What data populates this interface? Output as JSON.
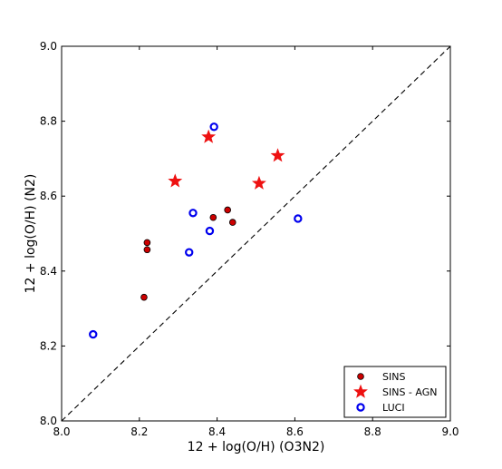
{
  "chart_data": {
    "type": "scatter",
    "xlabel": "12 + log(O/H) (O3N2)",
    "ylabel": "12 + log(O/H) (N2)",
    "xlim": [
      8.0,
      9.0
    ],
    "ylim": [
      8.0,
      9.0
    ],
    "xticks": [
      "8.0",
      "8.2",
      "8.4",
      "8.6",
      "8.8",
      "9.0"
    ],
    "yticks": [
      "8.0",
      "8.2",
      "8.4",
      "8.6",
      "8.8",
      "9.0"
    ],
    "grid": false,
    "legend_position": "lower-right",
    "reference_line": {
      "style": "dashed",
      "from": [
        8.0,
        8.0
      ],
      "to": [
        9.0,
        9.0
      ],
      "color": "#000000"
    },
    "series": [
      {
        "name": "SINS",
        "marker": "filled-circle",
        "color": "#cc0000",
        "points": [
          {
            "x": 8.212,
            "y": 8.33
          },
          {
            "x": 8.22,
            "y": 8.476
          },
          {
            "x": 8.22,
            "y": 8.457
          },
          {
            "x": 8.39,
            "y": 8.543
          },
          {
            "x": 8.427,
            "y": 8.563
          },
          {
            "x": 8.44,
            "y": 8.53
          }
        ]
      },
      {
        "name": "SINS - AGN",
        "marker": "star",
        "color": "#ee1111",
        "points": [
          {
            "x": 8.292,
            "y": 8.64
          },
          {
            "x": 8.378,
            "y": 8.758
          },
          {
            "x": 8.508,
            "y": 8.634
          },
          {
            "x": 8.556,
            "y": 8.708
          }
        ]
      },
      {
        "name": "LUCI",
        "marker": "open-circle",
        "color": "#0000ee",
        "points": [
          {
            "x": 8.081,
            "y": 8.231
          },
          {
            "x": 8.328,
            "y": 8.45
          },
          {
            "x": 8.338,
            "y": 8.555
          },
          {
            "x": 8.381,
            "y": 8.507
          },
          {
            "x": 8.392,
            "y": 8.785
          },
          {
            "x": 8.608,
            "y": 8.54
          }
        ]
      }
    ]
  }
}
